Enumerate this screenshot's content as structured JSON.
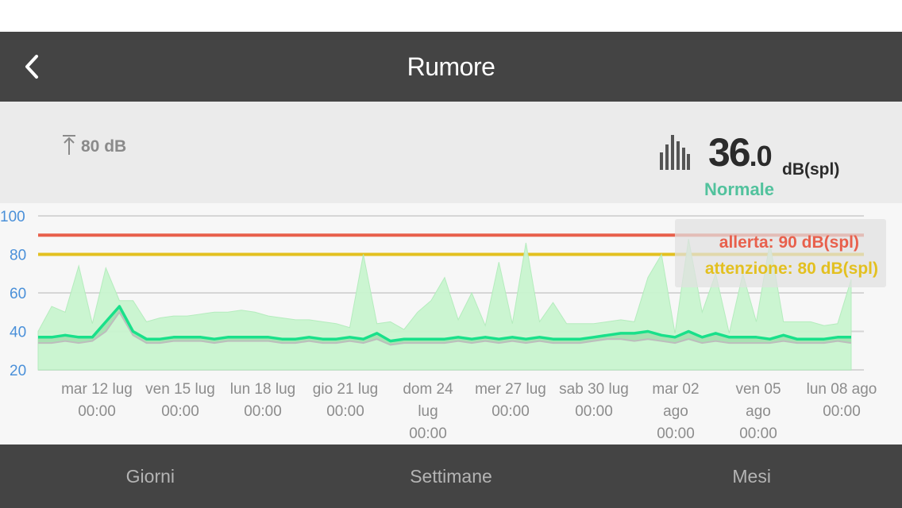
{
  "nav": {
    "title": "Rumore",
    "back_icon": "chevron-left-icon"
  },
  "summary": {
    "max_icon": "arrow-to-top-icon",
    "max_value": "80 dB",
    "level_icon": "bars-icon",
    "current_int": "36",
    "current_dec": ".0",
    "unit": "dB(spl)",
    "status": "Normale",
    "status_color": "#52c29d"
  },
  "thresholds": {
    "alert_label": "allerta: 90 dB(spl)",
    "alert_value": 90,
    "alert_color": "#e8604c",
    "warning_label": "attenzione: 80 dB(spl)",
    "warning_value": 80,
    "warning_color": "#e3c020"
  },
  "chart_data": {
    "type": "area",
    "ylim": [
      20,
      100
    ],
    "yticks": [
      "100",
      "80",
      "60",
      "40",
      "20"
    ],
    "grid": true,
    "x_tick_labels": [
      [
        "mar 12 lug",
        "00:00"
      ],
      [
        "ven 15 lug",
        "00:00"
      ],
      [
        "lun 18 lug",
        "00:00"
      ],
      [
        "gio 21 lug",
        "00:00"
      ],
      [
        "dom 24",
        "lug",
        "00:00"
      ],
      [
        "mer 27 lug",
        "00:00"
      ],
      [
        "sab 30 lug",
        "00:00"
      ],
      [
        "mar 02",
        "ago",
        "00:00"
      ],
      [
        "ven 05",
        "ago",
        "00:00"
      ],
      [
        "lun 08 ago",
        "00:00"
      ]
    ],
    "max_series": [
      40,
      53,
      50,
      74,
      44,
      73,
      56,
      56,
      45,
      47,
      48,
      48,
      49,
      50,
      50,
      51,
      50,
      48,
      47,
      46,
      46,
      45,
      44,
      42,
      80,
      44,
      45,
      41,
      50,
      56,
      68,
      46,
      60,
      43,
      76,
      44,
      86,
      45,
      55,
      44,
      44,
      44,
      45,
      46,
      45,
      68,
      80,
      39,
      88,
      50,
      70,
      39,
      70,
      45,
      86,
      45,
      45,
      45,
      43,
      44,
      67
    ],
    "avg_series": [
      37,
      37,
      38,
      37,
      37,
      45,
      53,
      40,
      36,
      36,
      37,
      37,
      37,
      36,
      37,
      37,
      37,
      37,
      36,
      36,
      37,
      36,
      36,
      37,
      36,
      39,
      35,
      36,
      36,
      36,
      36,
      37,
      36,
      37,
      36,
      37,
      36,
      37,
      36,
      36,
      36,
      37,
      38,
      39,
      39,
      40,
      38,
      37,
      40,
      37,
      39,
      37,
      37,
      37,
      36,
      38,
      36,
      36,
      36,
      37,
      37
    ],
    "min_series": [
      34,
      34,
      35,
      34,
      35,
      40,
      50,
      38,
      34,
      34,
      35,
      35,
      35,
      34,
      35,
      35,
      35,
      35,
      34,
      34,
      35,
      34,
      34,
      35,
      34,
      36,
      33,
      34,
      34,
      34,
      34,
      35,
      34,
      35,
      34,
      35,
      34,
      35,
      34,
      34,
      34,
      35,
      36,
      36,
      35,
      36,
      35,
      34,
      36,
      34,
      35,
      34,
      34,
      34,
      34,
      35,
      34,
      34,
      34,
      35,
      34
    ]
  },
  "tabs": [
    {
      "label": "Giorni"
    },
    {
      "label": "Settimane"
    },
    {
      "label": "Mesi"
    }
  ]
}
